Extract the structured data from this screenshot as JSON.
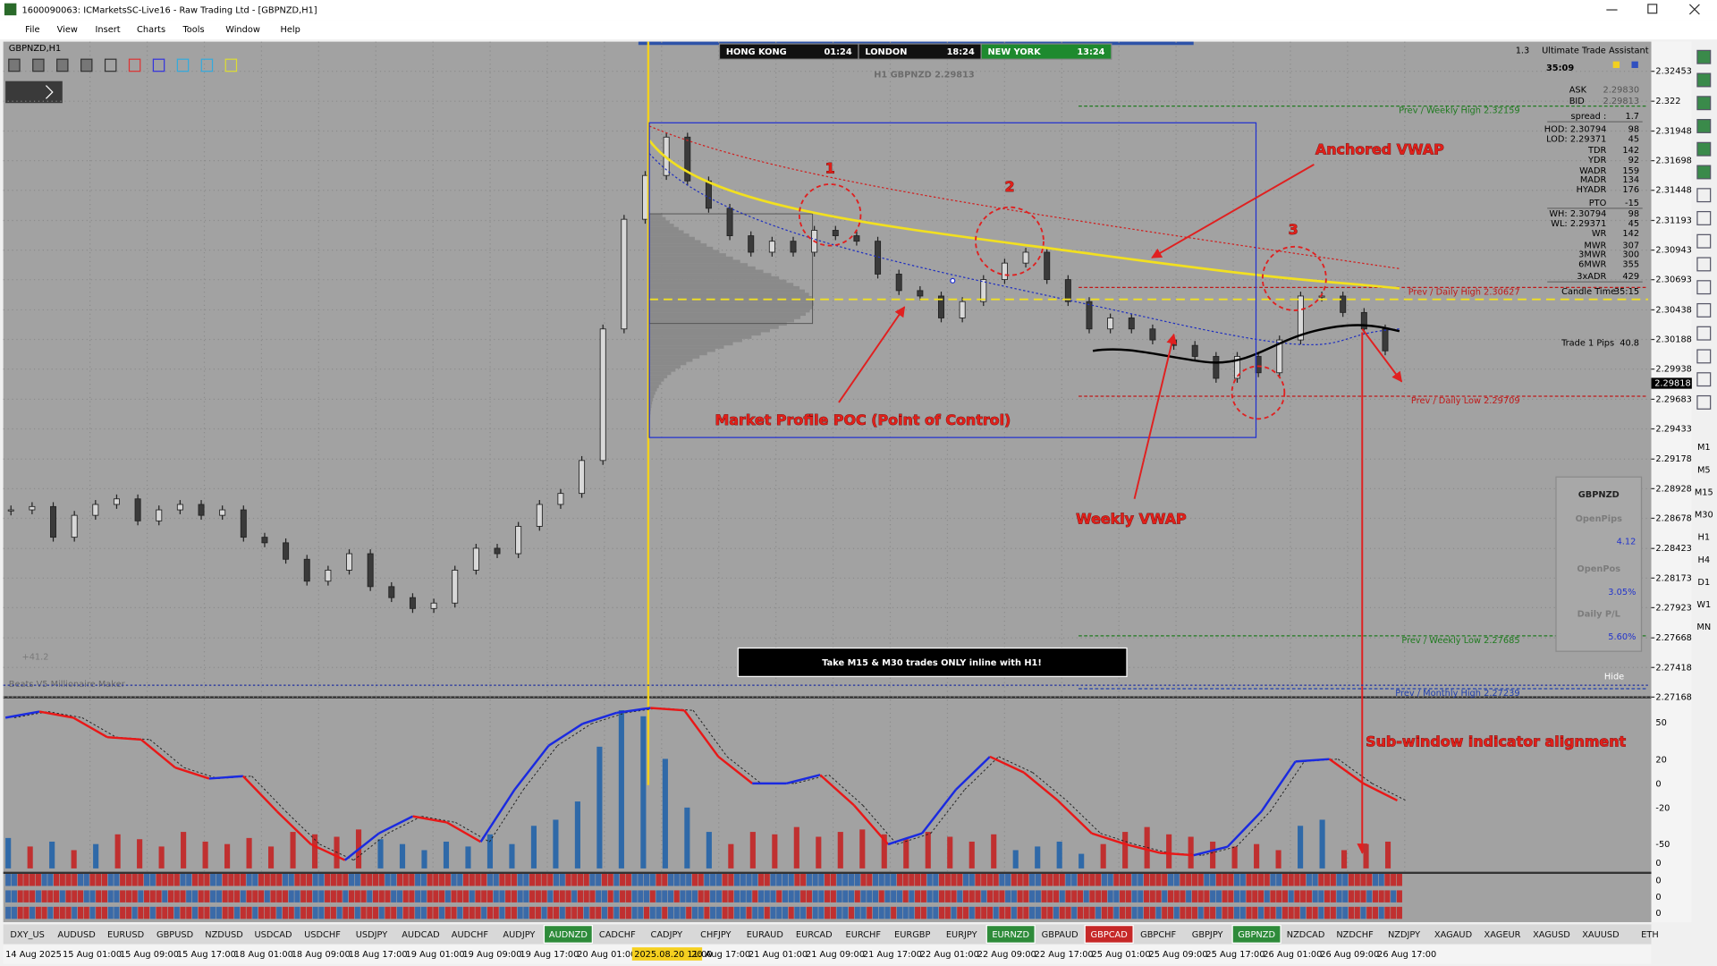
{
  "title_bar": {
    "title": "1600090063: ICMarketsSC-Live16 - Raw Trading Ltd - [GBPNZD,H1]"
  },
  "menu": [
    "File",
    "View",
    "Insert",
    "Charts",
    "Tools",
    "Window",
    "Help"
  ],
  "chart": {
    "symbol_label": "GBPNZD,H1",
    "sessions": [
      {
        "city": "HONG KONG",
        "time": "01:24",
        "color": "#111111"
      },
      {
        "city": "LONDON",
        "time": "18:24",
        "color": "#111111"
      },
      {
        "city": "NEW YORK",
        "time": "13:24",
        "color": "#1e8a2e"
      }
    ],
    "headline": "H1 GBPNZD 2.29813",
    "ylim": [
      2.27175,
      2.32703
    ],
    "yticks": [
      2.32453,
      2.322,
      2.31948,
      2.31698,
      2.31448,
      2.31193,
      2.30943,
      2.30693,
      2.30438,
      2.30188,
      2.29938,
      2.29683,
      2.29433,
      2.29178,
      2.28928,
      2.28678,
      2.28423,
      2.28173,
      2.27923,
      2.27668,
      2.27418,
      2.27168
    ],
    "current_price": 2.29818,
    "closes": [
      2.28749,
      2.28777,
      2.28518,
      2.28703,
      2.28795,
      2.28842,
      2.28656,
      2.28749,
      2.28795,
      2.28703,
      2.28749,
      2.28518,
      2.28471,
      2.28332,
      2.28147,
      2.2824,
      2.28379,
      2.28101,
      2.28008,
      2.27916,
      2.27962,
      2.2824,
      2.28425,
      2.28379,
      2.2861,
      2.28795,
      2.28888,
      2.29166,
      2.30277,
      2.31203,
      2.31573,
      2.31897,
      2.31527,
      2.31296,
      2.31064,
      2.30925,
      2.31018,
      2.30925,
      2.3111,
      2.31064,
      2.31018,
      2.3074,
      2.30601,
      2.30555,
      2.3037,
      2.30508,
      2.30694,
      2.30833,
      2.30925,
      2.30694,
      2.30508,
      2.30277,
      2.3037,
      2.30277,
      2.30184,
      2.30138,
      2.30045,
      2.2986,
      2.30045,
      2.29907,
      2.30184,
      2.30555,
      2.30555,
      2.30416,
      2.30277,
      2.30092
    ],
    "levels": [
      {
        "label": "Prev / Weekly High 2.32159",
        "price": 2.32159,
        "color": "#1f7a1f"
      },
      {
        "label": "Prev / Daily High 2.30627",
        "price": 2.30627,
        "color": "#c01818"
      },
      {
        "label": "Prev / Daily Low 2.29709",
        "price": 2.29709,
        "color": "#c01818"
      },
      {
        "label": "Prev / Weekly Low 2.27685",
        "price": 2.27685,
        "color": "#1f7a1f"
      },
      {
        "label": "Prev / Monthly High 2.27239",
        "price": 2.27239,
        "color": "#1f3fb0"
      }
    ],
    "annotations": {
      "one": "1",
      "two": "2",
      "three": "3",
      "anchored_vwap": "Anchored VWAP",
      "poc": "Market Profile POC (Point of Control)",
      "weekly_vwap": "Weekly VWAP",
      "sub_window": "Sub-window indicator alignment"
    },
    "banner": "Take M15 & M30 trades ONLY inline with H1!",
    "pips_total": "+41.2",
    "indicator_name": "Beats V5 Millionaire Maker",
    "hide": "Hide",
    "assistant": {
      "scale": "1.3",
      "title": "Ultimate Trade Assistant",
      "timer": "35:09",
      "rows": [
        [
          "ASK",
          "2.29830"
        ],
        [
          "BID",
          "2.29813"
        ],
        [
          "spread :",
          "1.7"
        ],
        [
          "HOD: 2.30794",
          "98"
        ],
        [
          "LOD: 2.29371",
          "45"
        ],
        [
          "TDR",
          "142"
        ],
        [
          "YDR",
          "92"
        ],
        [
          "WADR",
          "159"
        ],
        [
          "MADR",
          "134"
        ],
        [
          "HYADR",
          "176"
        ],
        [
          "PTO",
          "-15"
        ],
        [
          "WH: 2.30794",
          "98"
        ],
        [
          "WL: 2.29371",
          "45"
        ],
        [
          "WR",
          "142"
        ],
        [
          "MWR",
          "307"
        ],
        [
          "3MWR",
          "300"
        ],
        [
          "6MWR",
          "355"
        ],
        [
          "3xADR",
          "429"
        ]
      ],
      "candle_time": [
        "Candle Time",
        "35:15"
      ],
      "trade": [
        "Trade 1 Pips",
        "40.8"
      ]
    },
    "account": {
      "symbol": "GBPNZD",
      "rows": [
        [
          "OpenPips",
          "4.12"
        ],
        [
          "OpenPos",
          "3.05%"
        ],
        [
          "Daily P/L",
          "5.60%"
        ]
      ]
    }
  },
  "sub_window": {
    "axis_labels": [
      "50",
      "20",
      "0",
      "-20",
      "-50",
      "0"
    ],
    "ylim": [
      -72.5,
      69.8
    ],
    "oscillator": [
      54,
      59,
      54,
      38,
      36,
      13,
      4,
      6,
      -23,
      -50,
      -63,
      -41,
      -27,
      -32,
      -48,
      -5,
      31,
      49,
      58,
      62,
      60,
      22,
      0,
      0,
      7,
      -18,
      -50,
      -41,
      -5,
      22,
      9,
      -14,
      -41,
      -50,
      -57,
      -59,
      -52,
      -23,
      18,
      20,
      0,
      -14
    ],
    "histogram": {
      "values": [
        25,
        18,
        22,
        15,
        20,
        28,
        24,
        18,
        30,
        22,
        20,
        25,
        18,
        30,
        28,
        26,
        32,
        24,
        20,
        15,
        22,
        18,
        28,
        20,
        35,
        40,
        55,
        100,
        130,
        125,
        90,
        50,
        30,
        20,
        30,
        28,
        34,
        26,
        30,
        32,
        28,
        24,
        30,
        26,
        22,
        28,
        15,
        18,
        22,
        12,
        20,
        30,
        34,
        28,
        26,
        22,
        18,
        20,
        15,
        35,
        40,
        15,
        20,
        22
      ],
      "colors": [
        "#2f69a8",
        "#c03030",
        "#2f69a8",
        "#c03030",
        "#2f69a8",
        "#c03030",
        "#c03030",
        "#c03030",
        "#c03030",
        "#c03030",
        "#c03030",
        "#c03030",
        "#c03030",
        "#c03030",
        "#c03030",
        "#c03030",
        "#c03030",
        "#2f69a8",
        "#2f69a8",
        "#2f69a8",
        "#2f69a8",
        "#2f69a8",
        "#2f69a8",
        "#2f69a8",
        "#2f69a8",
        "#2f69a8",
        "#2f69a8",
        "#2f69a8",
        "#2f69a8",
        "#2f69a8",
        "#2f69a8",
        "#2f69a8",
        "#2f69a8",
        "#c03030",
        "#c03030",
        "#c03030",
        "#c03030",
        "#c03030",
        "#c03030",
        "#c03030",
        "#c03030",
        "#c03030",
        "#c03030",
        "#c03030",
        "#c03030",
        "#c03030",
        "#2f69a8",
        "#2f69a8",
        "#2f69a8",
        "#2f69a8",
        "#c03030",
        "#c03030",
        "#c03030",
        "#c03030",
        "#c03030",
        "#c03030",
        "#c03030",
        "#c03030",
        "#c03030",
        "#2f69a8",
        "#2f69a8",
        "#c03030",
        "#c03030",
        "#c03030"
      ]
    },
    "signal_labels": [
      "0",
      "0",
      "0"
    ]
  },
  "symbol_tabs": [
    {
      "name": "DXY_US"
    },
    {
      "name": "AUDUSD"
    },
    {
      "name": "EURUSD"
    },
    {
      "name": "GBPUSD"
    },
    {
      "name": "NZDUSD"
    },
    {
      "name": "USDCAD"
    },
    {
      "name": "USDCHF"
    },
    {
      "name": "USDJPY"
    },
    {
      "name": "AUDCAD"
    },
    {
      "name": "AUDCHF"
    },
    {
      "name": "AUDJPY"
    },
    {
      "name": "AUDNZD",
      "color": "#2e8b3a"
    },
    {
      "name": "CADCHF"
    },
    {
      "name": "CADJPY"
    },
    {
      "name": "CHFJPY"
    },
    {
      "name": "EURAUD"
    },
    {
      "name": "EURCAD"
    },
    {
      "name": "EURCHF"
    },
    {
      "name": "EURGBP"
    },
    {
      "name": "EURJPY"
    },
    {
      "name": "EURNZD",
      "color": "#2e8b3a"
    },
    {
      "name": "GBPAUD"
    },
    {
      "name": "GBPCAD",
      "color": "#c62828"
    },
    {
      "name": "GBPCHF"
    },
    {
      "name": "GBPJPY"
    },
    {
      "name": "GBPNZD",
      "color": "#2e8b3a"
    },
    {
      "name": "NZDCAD"
    },
    {
      "name": "NZDCHF"
    },
    {
      "name": "NZDJPY"
    },
    {
      "name": "XAGAUD"
    },
    {
      "name": "XAGEUR"
    },
    {
      "name": "XAGUSD"
    },
    {
      "name": "XAUUSD"
    },
    {
      "name": "ETH"
    }
  ],
  "time_axis": [
    {
      "text": "14 Aug 2025"
    },
    {
      "text": "15 Aug 01:00"
    },
    {
      "text": "15 Aug 09:00"
    },
    {
      "text": "15 Aug 17:00"
    },
    {
      "text": "18 Aug 01:00"
    },
    {
      "text": "18 Aug 09:00"
    },
    {
      "text": "18 Aug 17:00"
    },
    {
      "text": "19 Aug 01:00"
    },
    {
      "text": "19 Aug 09:00"
    },
    {
      "text": "19 Aug 17:00"
    },
    {
      "text": "20 Aug 01:00"
    },
    {
      "text": "2025.08.20 11:00",
      "highlight": "#f5d020"
    },
    {
      "text": "20 Aug 17:00"
    },
    {
      "text": "21 Aug 01:00"
    },
    {
      "text": "21 Aug 09:00"
    },
    {
      "text": "21 Aug 17:00"
    },
    {
      "text": "22 Aug 01:00"
    },
    {
      "text": "22 Aug 09:00"
    },
    {
      "text": "22 Aug 17:00"
    },
    {
      "text": "25 Aug 01:00"
    },
    {
      "text": "25 Aug 09:00"
    },
    {
      "text": "25 Aug 17:00"
    },
    {
      "text": "26 Aug 01:00"
    },
    {
      "text": "26 Aug 09:00"
    },
    {
      "text": "26 Aug 17:00"
    }
  ],
  "timeframes": [
    "M1",
    "M5",
    "M15",
    "M30",
    "H1",
    "H4",
    "D1",
    "W1",
    "MN"
  ]
}
